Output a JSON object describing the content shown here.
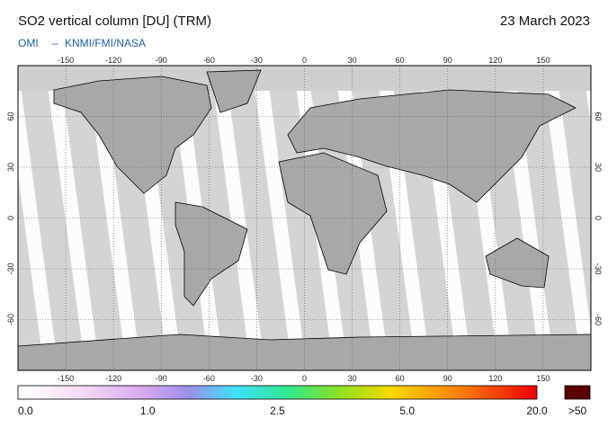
{
  "header": {
    "title": "SO2 vertical column [DU] (TRM)",
    "date": "23 March 2023",
    "instrument": "OMI",
    "separator": "–",
    "source": "KNMI/FMI/NASA"
  },
  "map": {
    "lonlim": [
      -180,
      180
    ],
    "latlim": [
      -90,
      90
    ],
    "lon_ticks": [
      -150,
      -120,
      -90,
      -60,
      -30,
      0,
      30,
      60,
      90,
      120,
      150
    ],
    "lat_ticks": [
      60,
      30,
      0,
      -30,
      -60
    ]
  },
  "colorbar": {
    "ticks": [
      {
        "value": 0,
        "label": "0.0"
      },
      {
        "value": 1,
        "label": "1.0"
      },
      2.5,
      {
        "value": 5,
        "label": "5.0"
      },
      {
        "value": 20,
        "label": "20.0"
      }
    ],
    "overflow_label": ">50"
  }
}
